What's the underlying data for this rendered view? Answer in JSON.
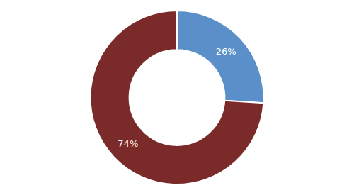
{
  "chart_data": {
    "type": "donut",
    "values": [
      26,
      74
    ],
    "value_labels": [
      "26%",
      "74%"
    ],
    "colors": [
      "#5b8fc9",
      "#7b2a2a"
    ],
    "data_labels": true
  }
}
